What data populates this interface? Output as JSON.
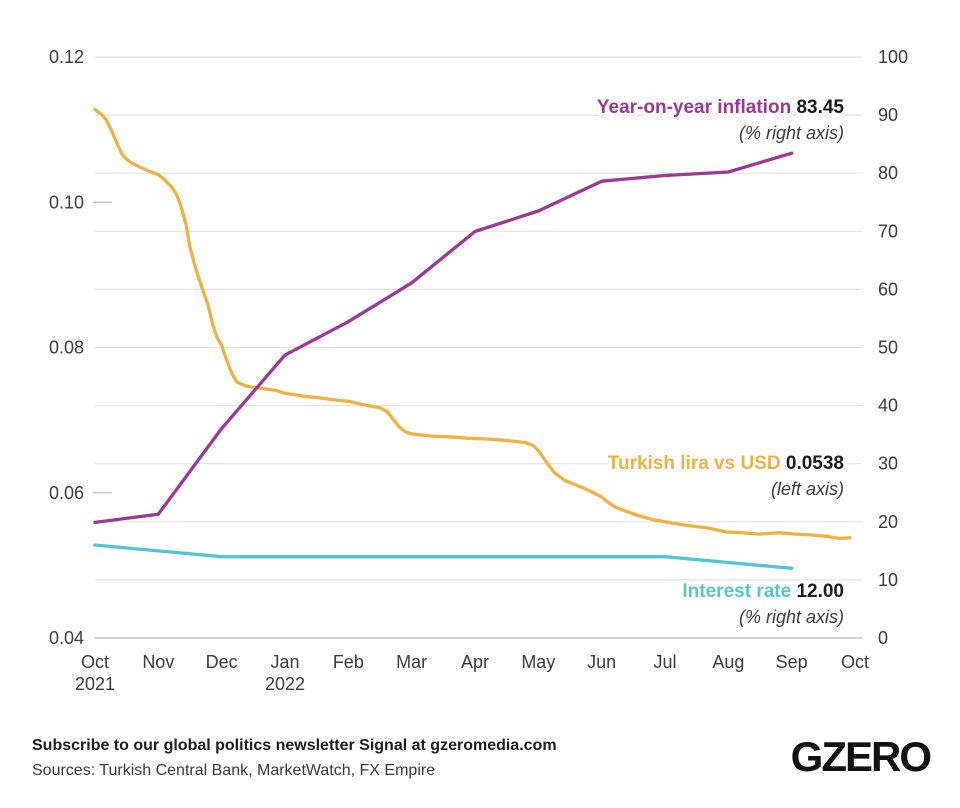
{
  "chart_data": {
    "type": "line",
    "title": "",
    "x_axis": {
      "tick_labels": [
        "Oct",
        "Nov",
        "Dec",
        "Jan",
        "Feb",
        "Mar",
        "Apr",
        "May",
        "Jun",
        "Jul",
        "Aug",
        "Sep",
        "Oct"
      ],
      "year_labels": [
        {
          "index": 0,
          "text": "2021"
        },
        {
          "index": 3,
          "text": "2022"
        }
      ]
    },
    "left_axis": {
      "min": 0.04,
      "max": 0.12,
      "tick_labels": [
        "0.12",
        "0.10",
        "0.08",
        "0.06",
        "0.04"
      ],
      "tick_values": [
        0.12,
        0.1,
        0.08,
        0.06,
        0.04
      ],
      "minor_tick_values": [
        0.1,
        0.06
      ]
    },
    "right_axis": {
      "min": 0,
      "max": 100,
      "grid_step": 10,
      "tick_labels": [
        "100",
        "90",
        "80",
        "70",
        "60",
        "50",
        "40",
        "30",
        "20",
        "10",
        "0"
      ],
      "tick_values": [
        100,
        90,
        80,
        70,
        60,
        50,
        40,
        30,
        20,
        10,
        0
      ]
    },
    "grid": true,
    "legend_position": "inline-right",
    "series": [
      {
        "name": "Turkish lira vs USD",
        "axis": "left",
        "color": "#EFB142",
        "value_label": "0.0538",
        "caption": "(left axis)",
        "points": [
          [
            0,
            0.1128
          ],
          [
            0.1,
            0.1121
          ],
          [
            0.18,
            0.1113
          ],
          [
            0.26,
            0.1099
          ],
          [
            0.34,
            0.1083
          ],
          [
            0.42,
            0.1067
          ],
          [
            0.5,
            0.1059
          ],
          [
            0.6,
            0.1053
          ],
          [
            0.72,
            0.1048
          ],
          [
            0.85,
            0.1043
          ],
          [
            1,
            0.1038
          ],
          [
            1.1,
            0.1031
          ],
          [
            1.2,
            0.1022
          ],
          [
            1.28,
            0.1012
          ],
          [
            1.36,
            0.0994
          ],
          [
            1.44,
            0.0968
          ],
          [
            1.5,
            0.0938
          ],
          [
            1.57,
            0.0915
          ],
          [
            1.64,
            0.0895
          ],
          [
            1.71,
            0.0877
          ],
          [
            1.79,
            0.0857
          ],
          [
            1.86,
            0.0831
          ],
          [
            1.93,
            0.0813
          ],
          [
            2,
            0.0803
          ],
          [
            2.06,
            0.0787
          ],
          [
            2.12,
            0.0773
          ],
          [
            2.18,
            0.0761
          ],
          [
            2.25,
            0.0752
          ],
          [
            2.38,
            0.0747
          ],
          [
            2.6,
            0.0744
          ],
          [
            2.85,
            0.0741
          ],
          [
            3,
            0.0737
          ],
          [
            3.3,
            0.0733
          ],
          [
            3.6,
            0.073
          ],
          [
            3.85,
            0.0727
          ],
          [
            4,
            0.0726
          ],
          [
            4.25,
            0.0721
          ],
          [
            4.5,
            0.0717
          ],
          [
            4.62,
            0.0711
          ],
          [
            4.7,
            0.0702
          ],
          [
            4.8,
            0.0691
          ],
          [
            4.9,
            0.0684
          ],
          [
            5,
            0.0681
          ],
          [
            5.3,
            0.0678
          ],
          [
            5.6,
            0.0677
          ],
          [
            5.9,
            0.0675
          ],
          [
            6.2,
            0.0674
          ],
          [
            6.5,
            0.0672
          ],
          [
            6.8,
            0.0669
          ],
          [
            6.92,
            0.0665
          ],
          [
            7.02,
            0.0656
          ],
          [
            7.12,
            0.0643
          ],
          [
            7.25,
            0.0628
          ],
          [
            7.4,
            0.0618
          ],
          [
            7.55,
            0.0612
          ],
          [
            7.7,
            0.0607
          ],
          [
            7.85,
            0.0601
          ],
          [
            8,
            0.0594
          ],
          [
            8.1,
            0.0587
          ],
          [
            8.22,
            0.058
          ],
          [
            8.4,
            0.0574
          ],
          [
            8.6,
            0.0568
          ],
          [
            8.8,
            0.0563
          ],
          [
            9,
            0.056
          ],
          [
            9.2,
            0.0557
          ],
          [
            9.45,
            0.0554
          ],
          [
            9.7,
            0.0551
          ],
          [
            9.97,
            0.0546
          ],
          [
            10.2,
            0.0545
          ],
          [
            10.5,
            0.0543
          ],
          [
            10.8,
            0.0545
          ],
          [
            11.05,
            0.0543
          ],
          [
            11.3,
            0.0542
          ],
          [
            11.55,
            0.054
          ],
          [
            11.75,
            0.0537
          ],
          [
            11.92,
            0.0538
          ]
        ]
      },
      {
        "name": "Year-on-year inflation",
        "axis": "right",
        "color": "#9A3996",
        "value_label": "83.45",
        "caption": "(% right axis)",
        "monthly_values": [
          19.89,
          21.31,
          36.08,
          48.69,
          54.44,
          61.14,
          69.97,
          73.5,
          78.62,
          79.6,
          80.21,
          83.45
        ]
      },
      {
        "name": "Interest rate",
        "axis": "right",
        "color": "#54C5D3",
        "value_label": "12.00",
        "caption": "(% right axis)",
        "monthly_values": [
          16,
          15,
          14,
          14,
          14,
          14,
          14,
          14,
          14,
          14,
          13,
          12
        ]
      }
    ]
  },
  "colors": {
    "gridline": "#e2e2e2",
    "baseline": "#c2c2c2",
    "minor_tick": "#c9c9c9",
    "axis_text": "#3c3c3c",
    "value_text": "#1a1a1a"
  },
  "footer": {
    "subscribe": "Subscribe to our global politics newsletter Signal at gzeromedia.com",
    "sources": "Sources: Turkish Central Bank, MarketWatch, FX Empire",
    "logo": "GZERO"
  }
}
